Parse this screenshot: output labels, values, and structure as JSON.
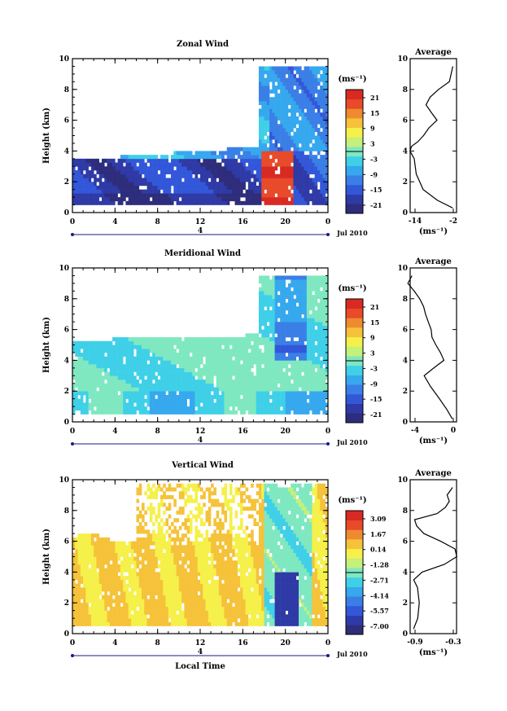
{
  "chart_data": [
    {
      "type": "heatmap",
      "title": "Zonal Wind",
      "ylabel": "Height (km)",
      "xlabel": "",
      "xticks": [
        "0",
        "4",
        "8",
        "12",
        "16",
        "20",
        "0"
      ],
      "yticks": [
        "0",
        "2",
        "4",
        "6",
        "8",
        "10"
      ],
      "xlim": [
        0,
        24
      ],
      "ylim": [
        0,
        10
      ],
      "day_marker": "4",
      "date_label": "Jul 2010",
      "colorbar": {
        "unit": "(ms⁻¹)",
        "ticks": [
          "21",
          "15",
          "9",
          "3",
          "-3",
          "-9",
          "-15",
          "-21"
        ],
        "range": [
          -24,
          24
        ]
      },
      "average": {
        "title": "Average",
        "xlabel": "(ms⁻¹)",
        "xticks": [
          "-14",
          "-2"
        ],
        "xlim": [
          -14,
          -2
        ],
        "height": [
          0.3,
          0.8,
          1.5,
          2.5,
          3.5,
          4.0,
          4.3,
          4.6,
          5.0,
          5.5,
          6.0,
          6.5,
          7.0,
          7.5,
          8.0,
          8.5,
          9.0,
          9.5
        ],
        "value": [
          -3.0,
          -7.0,
          -10.5,
          -12.5,
          -13.0,
          -14.0,
          -13.5,
          -12.0,
          -10.5,
          -9.0,
          -7.2,
          -8.5,
          -10.0,
          -9.0,
          -6.5,
          -4.0,
          -3.5,
          -3.0
        ]
      }
    },
    {
      "type": "heatmap",
      "title": "Meridional Wind",
      "ylabel": "Height (km)",
      "xlabel": "",
      "xticks": [
        "0",
        "4",
        "8",
        "12",
        "16",
        "20",
        "0"
      ],
      "yticks": [
        "0",
        "2",
        "4",
        "6",
        "8",
        "10"
      ],
      "xlim": [
        0,
        24
      ],
      "ylim": [
        0,
        10
      ],
      "day_marker": "4",
      "date_label": "Jul 2010",
      "colorbar": {
        "unit": "(ms⁻¹)",
        "ticks": [
          "21",
          "15",
          "9",
          "3",
          "-3",
          "-9",
          "-15",
          "-21"
        ],
        "range": [
          -24,
          24
        ]
      },
      "average": {
        "title": "Average",
        "xlabel": "(ms⁻¹)",
        "xticks": [
          "-4",
          "0"
        ],
        "xlim": [
          -4,
          1
        ],
        "height": [
          0.2,
          0.8,
          1.5,
          2.3,
          3.0,
          3.5,
          4.0,
          4.5,
          5.0,
          5.5,
          6.0,
          6.5,
          7.0,
          7.5,
          8.0,
          8.5,
          9.0,
          9.5
        ],
        "value": [
          0.5,
          0.0,
          -0.8,
          -1.8,
          -2.5,
          -1.5,
          -0.3,
          -0.8,
          -1.2,
          -1.6,
          -1.8,
          -2.0,
          -2.4,
          -2.6,
          -3.0,
          -3.5,
          -4.2,
          -3.8
        ]
      }
    },
    {
      "type": "heatmap",
      "title": "Vertical Wind",
      "ylabel": "Height (km)",
      "xlabel": "Local Time",
      "xticks": [
        "0",
        "4",
        "8",
        "12",
        "16",
        "20",
        "0"
      ],
      "yticks": [
        "0",
        "2",
        "4",
        "6",
        "8",
        "10"
      ],
      "xlim": [
        0,
        24
      ],
      "ylim": [
        0,
        10
      ],
      "day_marker": "4",
      "date_label": "Jul 2010",
      "colorbar": {
        "unit": "(ms⁻¹)",
        "ticks": [
          "3.09",
          "1.67",
          "0.14",
          "-1.28",
          "-2.71",
          "-4.14",
          "-5.57",
          "-7.00"
        ],
        "range": [
          -7.7,
          3.8
        ]
      },
      "average": {
        "title": "Average",
        "xlabel": "(ms⁻¹)",
        "xticks": [
          "-0.9",
          "-0.3"
        ],
        "xlim": [
          -0.9,
          -0.3
        ],
        "height": [
          0.3,
          1.0,
          2.0,
          3.0,
          3.5,
          4.0,
          4.5,
          5.0,
          5.5,
          6.0,
          6.5,
          7.0,
          7.4,
          7.8,
          8.2,
          8.6,
          9.0,
          9.5
        ],
        "value": [
          -0.85,
          -0.8,
          -0.78,
          -0.8,
          -0.85,
          -0.75,
          -0.45,
          -0.3,
          -0.32,
          -0.5,
          -0.72,
          -0.82,
          -0.85,
          -0.55,
          -0.45,
          -0.4,
          -0.42,
          -0.35
        ]
      }
    }
  ]
}
